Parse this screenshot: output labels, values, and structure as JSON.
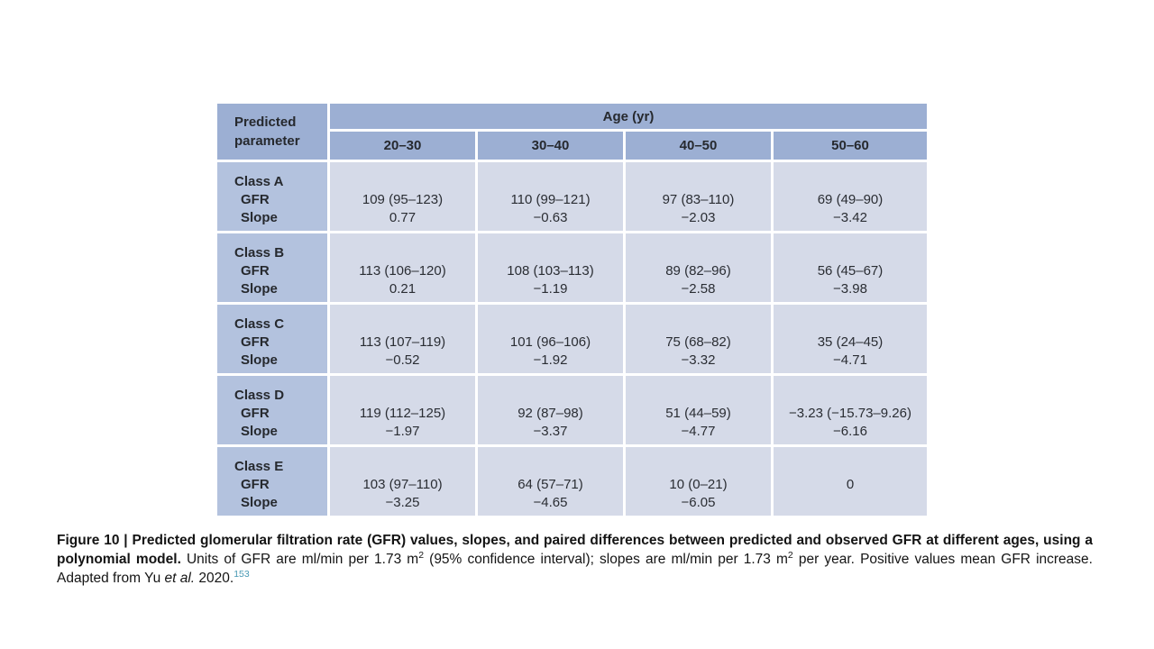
{
  "figure": {
    "table": {
      "corner_header": "Predicted parameter",
      "age_group_header": "Age (yr)",
      "age_columns": [
        "20–30",
        "30–40",
        "40–50",
        "50–60"
      ],
      "sub_labels": [
        "GFR",
        "Slope"
      ],
      "rows": [
        {
          "class_label": "Class A",
          "gfr": [
            "109 (95–123)",
            "110 (99–121)",
            "97 (83–110)",
            "69 (49–90)"
          ],
          "slope": [
            "0.77",
            "−0.63",
            "−2.03",
            "−3.42"
          ]
        },
        {
          "class_label": "Class B",
          "gfr": [
            "113 (106–120)",
            "108 (103–113)",
            "89 (82–96)",
            "56 (45–67)"
          ],
          "slope": [
            "0.21",
            "−1.19",
            "−2.58",
            "−3.98"
          ]
        },
        {
          "class_label": "Class C",
          "gfr": [
            "113 (107–119)",
            "101 (96–106)",
            "75 (68–82)",
            "35 (24–45)"
          ],
          "slope": [
            "−0.52",
            "−1.92",
            "−3.32",
            "−4.71"
          ]
        },
        {
          "class_label": "Class D",
          "gfr": [
            "119 (112–125)",
            "92 (87–98)",
            "51 (44–59)",
            "−3.23 (−15.73–9.26)"
          ],
          "slope": [
            "−1.97",
            "−3.37",
            "−4.77",
            "−6.16"
          ]
        },
        {
          "class_label": "Class E",
          "gfr": [
            "103 (97–110)",
            "64 (57–71)",
            "10 (0–21)",
            "0"
          ],
          "slope": [
            "−3.25",
            "−4.65",
            "−6.05",
            ""
          ]
        }
      ]
    },
    "caption": {
      "bold": "Figure 10 | Predicted glomerular filtration rate (GFR) values, slopes, and paired differences between predicted and observed GFR at different ages, using a polynomial model.",
      "body_1": " Units of GFR are ml/min per 1.73 m",
      "sup_1": "2",
      "body_2": " (95% confidence interval); slopes are ml/min per 1.73 m",
      "sup_2": "2",
      "body_3": " per year. Positive values mean GFR increase. Adapted from Yu ",
      "italic": "et al.",
      "body_4": " 2020.",
      "ref_sup": "153"
    },
    "colors": {
      "header_bg": "#9cafd3",
      "label_col_bg": "#b3c2de",
      "cell_bg": "#d5dae8",
      "reference_link": "#4899b4"
    }
  }
}
